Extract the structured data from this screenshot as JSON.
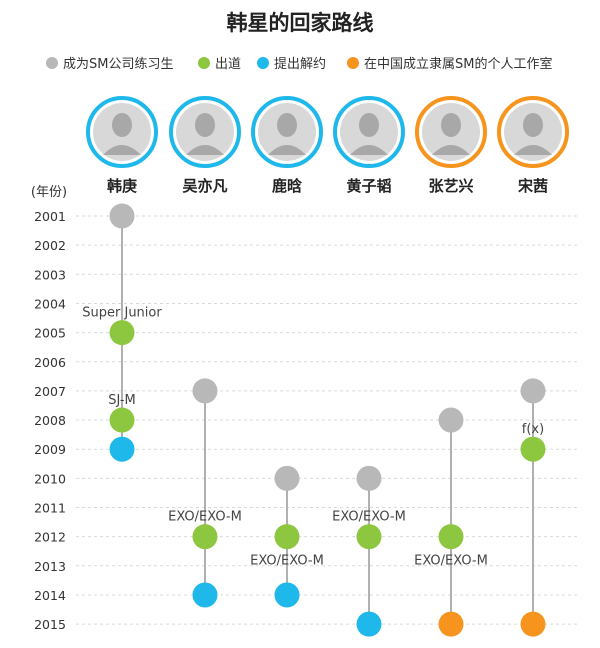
{
  "chart_data": {
    "type": "timeline",
    "title": "韩星的回家路线",
    "ylabel": "(年份)",
    "years": [
      2001,
      2002,
      2003,
      2004,
      2005,
      2006,
      2007,
      2008,
      2009,
      2010,
      2011,
      2012,
      2013,
      2014,
      2015
    ],
    "legend": [
      {
        "key": "trainee",
        "label": "成为SM公司练习生",
        "color": "#b8b8b8"
      },
      {
        "key": "debut",
        "label": "出道",
        "color": "#8dc63f"
      },
      {
        "key": "terminate",
        "label": "提出解约",
        "color": "#1fb8ea"
      },
      {
        "key": "studio",
        "label": "在中国成立隶属SM的个人工作室",
        "color": "#f7941d"
      }
    ],
    "people": [
      {
        "name": "韩庚",
        "ring_color": "#1fb8ea",
        "events": [
          {
            "type": "trainee",
            "year": 2001
          },
          {
            "type": "debut",
            "year": 2005,
            "label": "Super Junior"
          },
          {
            "type": "debut",
            "year": 2008,
            "label": "SJ-M"
          },
          {
            "type": "terminate",
            "year": 2009
          }
        ]
      },
      {
        "name": "吴亦凡",
        "ring_color": "#1fb8ea",
        "events": [
          {
            "type": "trainee",
            "year": 2007
          },
          {
            "type": "debut",
            "year": 2012,
            "label": "EXO/EXO-M"
          },
          {
            "type": "terminate",
            "year": 2014
          }
        ]
      },
      {
        "name": "鹿晗",
        "ring_color": "#1fb8ea",
        "events": [
          {
            "type": "trainee",
            "year": 2010
          },
          {
            "type": "debut",
            "year": 2012,
            "label": "EXO/EXO-M",
            "label_pos": "below"
          },
          {
            "type": "terminate",
            "year": 2014
          }
        ]
      },
      {
        "name": "黄子韬",
        "ring_color": "#1fb8ea",
        "events": [
          {
            "type": "trainee",
            "year": 2010
          },
          {
            "type": "debut",
            "year": 2012,
            "label": "EXO/EXO-M"
          },
          {
            "type": "terminate",
            "year": 2015
          }
        ]
      },
      {
        "name": "张艺兴",
        "ring_color": "#f7941d",
        "events": [
          {
            "type": "trainee",
            "year": 2008
          },
          {
            "type": "debut",
            "year": 2012,
            "label": "EXO/EXO-M",
            "label_pos": "below"
          },
          {
            "type": "studio",
            "year": 2015
          }
        ]
      },
      {
        "name": "宋茜",
        "ring_color": "#f7941d",
        "events": [
          {
            "type": "trainee",
            "year": 2007
          },
          {
            "type": "debut",
            "year": 2009,
            "label": "f(x)"
          },
          {
            "type": "studio",
            "year": 2015
          }
        ]
      }
    ]
  }
}
